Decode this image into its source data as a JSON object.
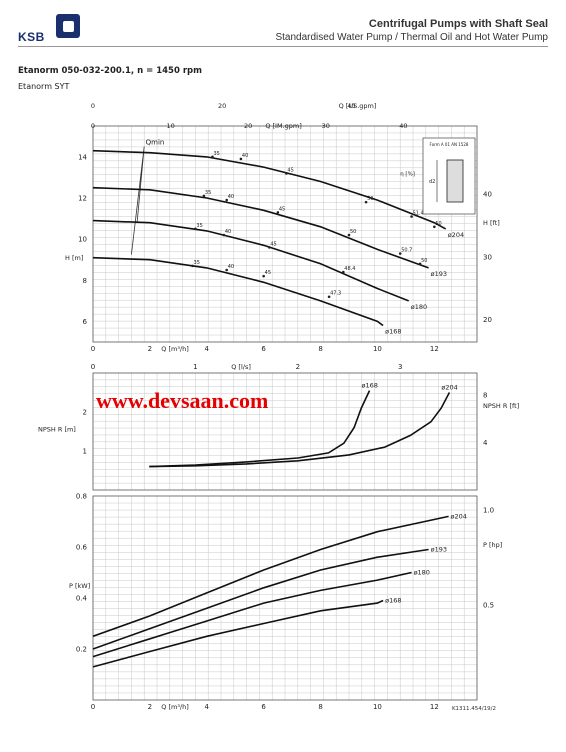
{
  "header": {
    "brand": "KSB",
    "title": "Centrifugal Pumps with Shaft Seal",
    "subtitle": "Standardised Water Pump / Thermal Oil and Hot Water Pump",
    "model_line": "Etanorm 050-032-200.1, n = 1450 rpm",
    "model_sub": "Etanorm SYT"
  },
  "watermark": "www.devsaan.com",
  "footer_code": "K1311.454/19/2",
  "chart_data": [
    {
      "type": "line",
      "panel": "head",
      "xlabel": "Q [m³/h]",
      "ylabel": "H [m]",
      "y2label": "H [ft]",
      "top_axes": [
        {
          "label": "Q [US.gpm]",
          "ticks": [
            0,
            20,
            40
          ]
        },
        {
          "label": "Q [IM.gpm]",
          "ticks": [
            0,
            10,
            20,
            30,
            40
          ]
        }
      ],
      "xlim": [
        0,
        13.5
      ],
      "ylim": [
        5,
        15.5
      ],
      "x_ticks": [
        0,
        2,
        4,
        6,
        8,
        10,
        12
      ],
      "y_ticks": [
        6,
        8,
        10,
        12,
        14
      ],
      "y2_ticks": [
        20,
        30,
        40
      ],
      "qmin_label": "Qmin",
      "eta_label": "η [%]",
      "inset_label": "Form A 01 AN 1528",
      "inset_dim": "d2",
      "series": [
        {
          "name": "ø204",
          "x": [
            0,
            2,
            4,
            6,
            8,
            10,
            12,
            12.4
          ],
          "y": [
            14.3,
            14.2,
            14.0,
            13.5,
            12.8,
            11.9,
            10.8,
            10.5
          ]
        },
        {
          "name": "ø193",
          "x": [
            0,
            2,
            4,
            6,
            8,
            10,
            11.8
          ],
          "y": [
            12.5,
            12.4,
            12.0,
            11.4,
            10.6,
            9.5,
            8.6
          ]
        },
        {
          "name": "ø180",
          "x": [
            0,
            2,
            4,
            6,
            8,
            10,
            11.1
          ],
          "y": [
            10.9,
            10.8,
            10.4,
            9.7,
            8.8,
            7.6,
            7.0
          ]
        },
        {
          "name": "ø168",
          "x": [
            0,
            2,
            4,
            6,
            8,
            10,
            10.2
          ],
          "y": [
            9.1,
            9.0,
            8.6,
            7.9,
            7.0,
            6.0,
            5.8
          ]
        }
      ],
      "efficiency_marks": [
        {
          "label": "35",
          "x": 4.2,
          "y": 14.0
        },
        {
          "label": "40",
          "x": 5.2,
          "y": 13.9
        },
        {
          "label": "45",
          "x": 6.8,
          "y": 13.2
        },
        {
          "label": "50",
          "x": 9.6,
          "y": 11.8
        },
        {
          "label": "51.4",
          "x": 11.2,
          "y": 11.1
        },
        {
          "label": "50",
          "x": 12.0,
          "y": 10.6
        },
        {
          "label": "35",
          "x": 3.9,
          "y": 12.1
        },
        {
          "label": "40",
          "x": 4.7,
          "y": 11.9
        },
        {
          "label": "45",
          "x": 6.5,
          "y": 11.3
        },
        {
          "label": "50",
          "x": 9.0,
          "y": 10.2
        },
        {
          "label": "50.7",
          "x": 10.8,
          "y": 9.3
        },
        {
          "label": "50",
          "x": 11.5,
          "y": 8.8
        },
        {
          "label": "35",
          "x": 3.6,
          "y": 10.5
        },
        {
          "label": "40",
          "x": 4.6,
          "y": 10.2
        },
        {
          "label": "45",
          "x": 6.2,
          "y": 9.6
        },
        {
          "label": "48.4",
          "x": 8.8,
          "y": 8.4
        },
        {
          "label": "35",
          "x": 3.5,
          "y": 8.7
        },
        {
          "label": "40",
          "x": 4.7,
          "y": 8.5
        },
        {
          "label": "45",
          "x": 6.0,
          "y": 8.2
        },
        {
          "label": "47.3",
          "x": 8.3,
          "y": 7.2
        }
      ]
    },
    {
      "type": "line",
      "panel": "npsh",
      "xlabel": "Q [l/s]",
      "ylabel": "NPSH R [m]",
      "y2label": "NPSH R [ft]",
      "xlim": [
        0,
        3.75
      ],
      "ylim": [
        0,
        3
      ],
      "x_ticks": [
        0,
        1,
        2,
        3
      ],
      "y_ticks": [
        1,
        2
      ],
      "y2_ticks": [
        4,
        8
      ],
      "series": [
        {
          "name": "ø168",
          "x": [
            0.55,
            1.0,
            1.5,
            2.0,
            2.3,
            2.45,
            2.55,
            2.62,
            2.7
          ],
          "y": [
            0.6,
            0.64,
            0.72,
            0.82,
            0.95,
            1.2,
            1.6,
            2.1,
            2.55
          ]
        },
        {
          "name": "ø204",
          "x": [
            0.55,
            1.0,
            1.5,
            2.0,
            2.5,
            2.85,
            3.1,
            3.3,
            3.4,
            3.48
          ],
          "y": [
            0.6,
            0.62,
            0.67,
            0.75,
            0.9,
            1.1,
            1.4,
            1.75,
            2.1,
            2.5
          ]
        }
      ]
    },
    {
      "type": "line",
      "panel": "power",
      "xlabel": "Q [m³/h]",
      "ylabel": "P [kW]",
      "y2label": "P [hp]",
      "xlim": [
        0,
        13.5
      ],
      "ylim": [
        0,
        0.8
      ],
      "x_ticks": [
        0,
        2,
        4,
        6,
        8,
        10,
        12
      ],
      "y_ticks": [
        0.2,
        0.4,
        0.6,
        0.8
      ],
      "y2_ticks": [
        0.5,
        1.0
      ],
      "series": [
        {
          "name": "ø204",
          "x": [
            0,
            2,
            4,
            6,
            8,
            10,
            12.5
          ],
          "y": [
            0.25,
            0.33,
            0.42,
            0.51,
            0.59,
            0.66,
            0.72
          ]
        },
        {
          "name": "ø193",
          "x": [
            0,
            2,
            4,
            6,
            8,
            10,
            11.8
          ],
          "y": [
            0.2,
            0.28,
            0.36,
            0.44,
            0.51,
            0.56,
            0.59
          ]
        },
        {
          "name": "ø180",
          "x": [
            0,
            2,
            4,
            6,
            8,
            10,
            11.2
          ],
          "y": [
            0.17,
            0.24,
            0.31,
            0.38,
            0.43,
            0.47,
            0.5
          ]
        },
        {
          "name": "ø168",
          "x": [
            0,
            2,
            4,
            6,
            8,
            10,
            10.2
          ],
          "y": [
            0.13,
            0.19,
            0.25,
            0.3,
            0.35,
            0.38,
            0.39
          ]
        }
      ]
    }
  ]
}
